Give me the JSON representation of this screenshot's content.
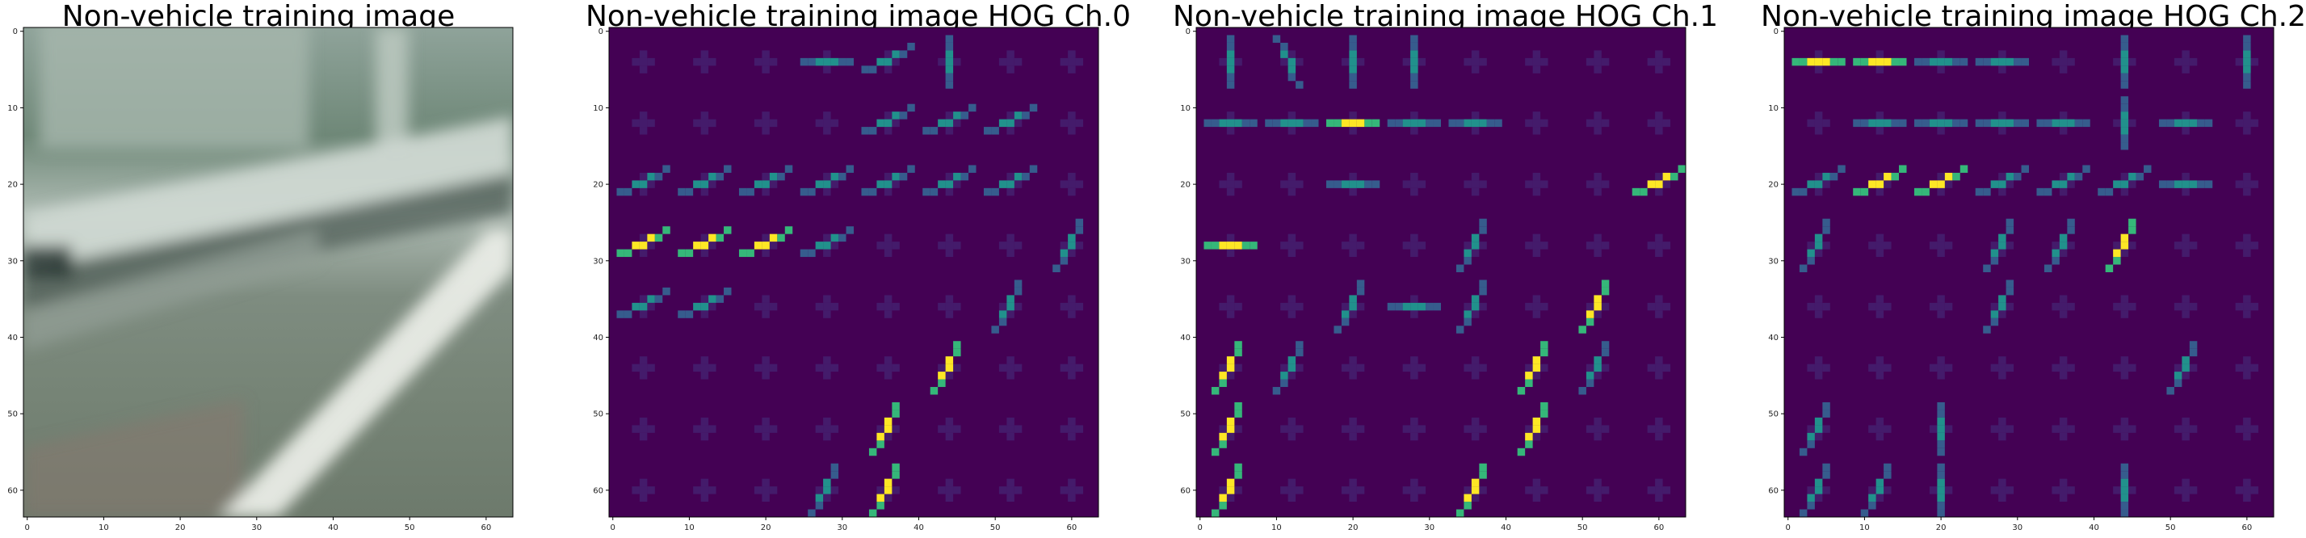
{
  "panels": [
    {
      "title": "Non-vehicle training image",
      "kind": "photo",
      "xticks": [
        "0",
        "10",
        "20",
        "30",
        "40",
        "50",
        "60"
      ],
      "yticks": [
        "0",
        "10",
        "20",
        "30",
        "40",
        "50",
        "60"
      ]
    },
    {
      "title": "Non-vehicle training image HOG Ch.0",
      "kind": "hog",
      "xticks": [
        "0",
        "10",
        "20",
        "30",
        "40",
        "50",
        "60"
      ],
      "yticks": [
        "0",
        "10",
        "20",
        "30",
        "40",
        "50",
        "60"
      ]
    },
    {
      "title": "Non-vehicle training image HOG Ch.1",
      "kind": "hog",
      "xticks": [
        "0",
        "10",
        "20",
        "30",
        "40",
        "50",
        "60"
      ],
      "yticks": [
        "0",
        "10",
        "20",
        "30",
        "40",
        "50",
        "60"
      ]
    },
    {
      "title": "Non-vehicle training image HOG Ch.2",
      "kind": "hog",
      "xticks": [
        "0",
        "10",
        "20",
        "30",
        "40",
        "50",
        "60"
      ],
      "yticks": [
        "0",
        "10",
        "20",
        "30",
        "40",
        "50",
        "60"
      ]
    }
  ],
  "colors": {
    "hog_background": "#440154",
    "hog_dim": "#46327e",
    "hog_mid": "#365c8d",
    "hog_teal": "#21918c",
    "hog_green": "#35b779",
    "hog_yellow": "#fde725",
    "photo_top": "#9aa89e",
    "photo_road": "#7c8a7c",
    "photo_rail": "#cfd8d2",
    "photo_stripe": "#e9ece6"
  },
  "hog_orientations": {
    "ch0": [
      [
        "w",
        "w",
        "w",
        "h",
        "d",
        "v",
        "w",
        "w"
      ],
      [
        "w",
        "w",
        "w",
        "w",
        "d",
        "d",
        "d",
        "w"
      ],
      [
        "d",
        "d",
        "d",
        "d",
        "d",
        "d",
        "d",
        "w"
      ],
      [
        "D",
        "D",
        "D",
        "d",
        "w",
        "w",
        "w",
        "u"
      ],
      [
        "d",
        "d",
        "w",
        "w",
        "w",
        "w",
        "u",
        "w"
      ],
      [
        "w",
        "w",
        "w",
        "w",
        "w",
        "U",
        "w",
        "w"
      ],
      [
        "w",
        "w",
        "w",
        "w",
        "U",
        "w",
        "w",
        "w"
      ],
      [
        "w",
        "w",
        "w",
        "u",
        "U",
        "w",
        "w",
        "w"
      ]
    ],
    "ch1": [
      [
        "v",
        "r",
        "v",
        "v",
        "w",
        "w",
        "w",
        "w"
      ],
      [
        "h",
        "h",
        "H",
        "h",
        "h",
        "w",
        "w",
        "w"
      ],
      [
        "w",
        "w",
        "h",
        "w",
        "w",
        "w",
        "w",
        "D"
      ],
      [
        "H",
        "w",
        "w",
        "w",
        "u",
        "w",
        "w",
        "w"
      ],
      [
        "w",
        "w",
        "u",
        "h",
        "u",
        "w",
        "U",
        "w"
      ],
      [
        "U",
        "u",
        "w",
        "w",
        "w",
        "U",
        "u",
        "w"
      ],
      [
        "U",
        "w",
        "w",
        "w",
        "w",
        "U",
        "w",
        "w"
      ],
      [
        "U",
        "w",
        "w",
        "w",
        "U",
        "w",
        "w",
        "w"
      ]
    ],
    "ch2": [
      [
        "H",
        "H",
        "h",
        "h",
        "w",
        "v",
        "w",
        "v"
      ],
      [
        "w",
        "h",
        "h",
        "h",
        "h",
        "v",
        "h",
        "w"
      ],
      [
        "d",
        "D",
        "D",
        "d",
        "d",
        "d",
        "h",
        "w"
      ],
      [
        "u",
        "w",
        "w",
        "u",
        "u",
        "U",
        "w",
        "w"
      ],
      [
        "w",
        "w",
        "w",
        "u",
        "w",
        "w",
        "w",
        "w"
      ],
      [
        "w",
        "w",
        "w",
        "w",
        "w",
        "w",
        "u",
        "w"
      ],
      [
        "u",
        "w",
        "v",
        "w",
        "w",
        "w",
        "w",
        "w"
      ],
      [
        "u",
        "u",
        "v",
        "w",
        "w",
        "v",
        "w",
        "w"
      ]
    ]
  }
}
